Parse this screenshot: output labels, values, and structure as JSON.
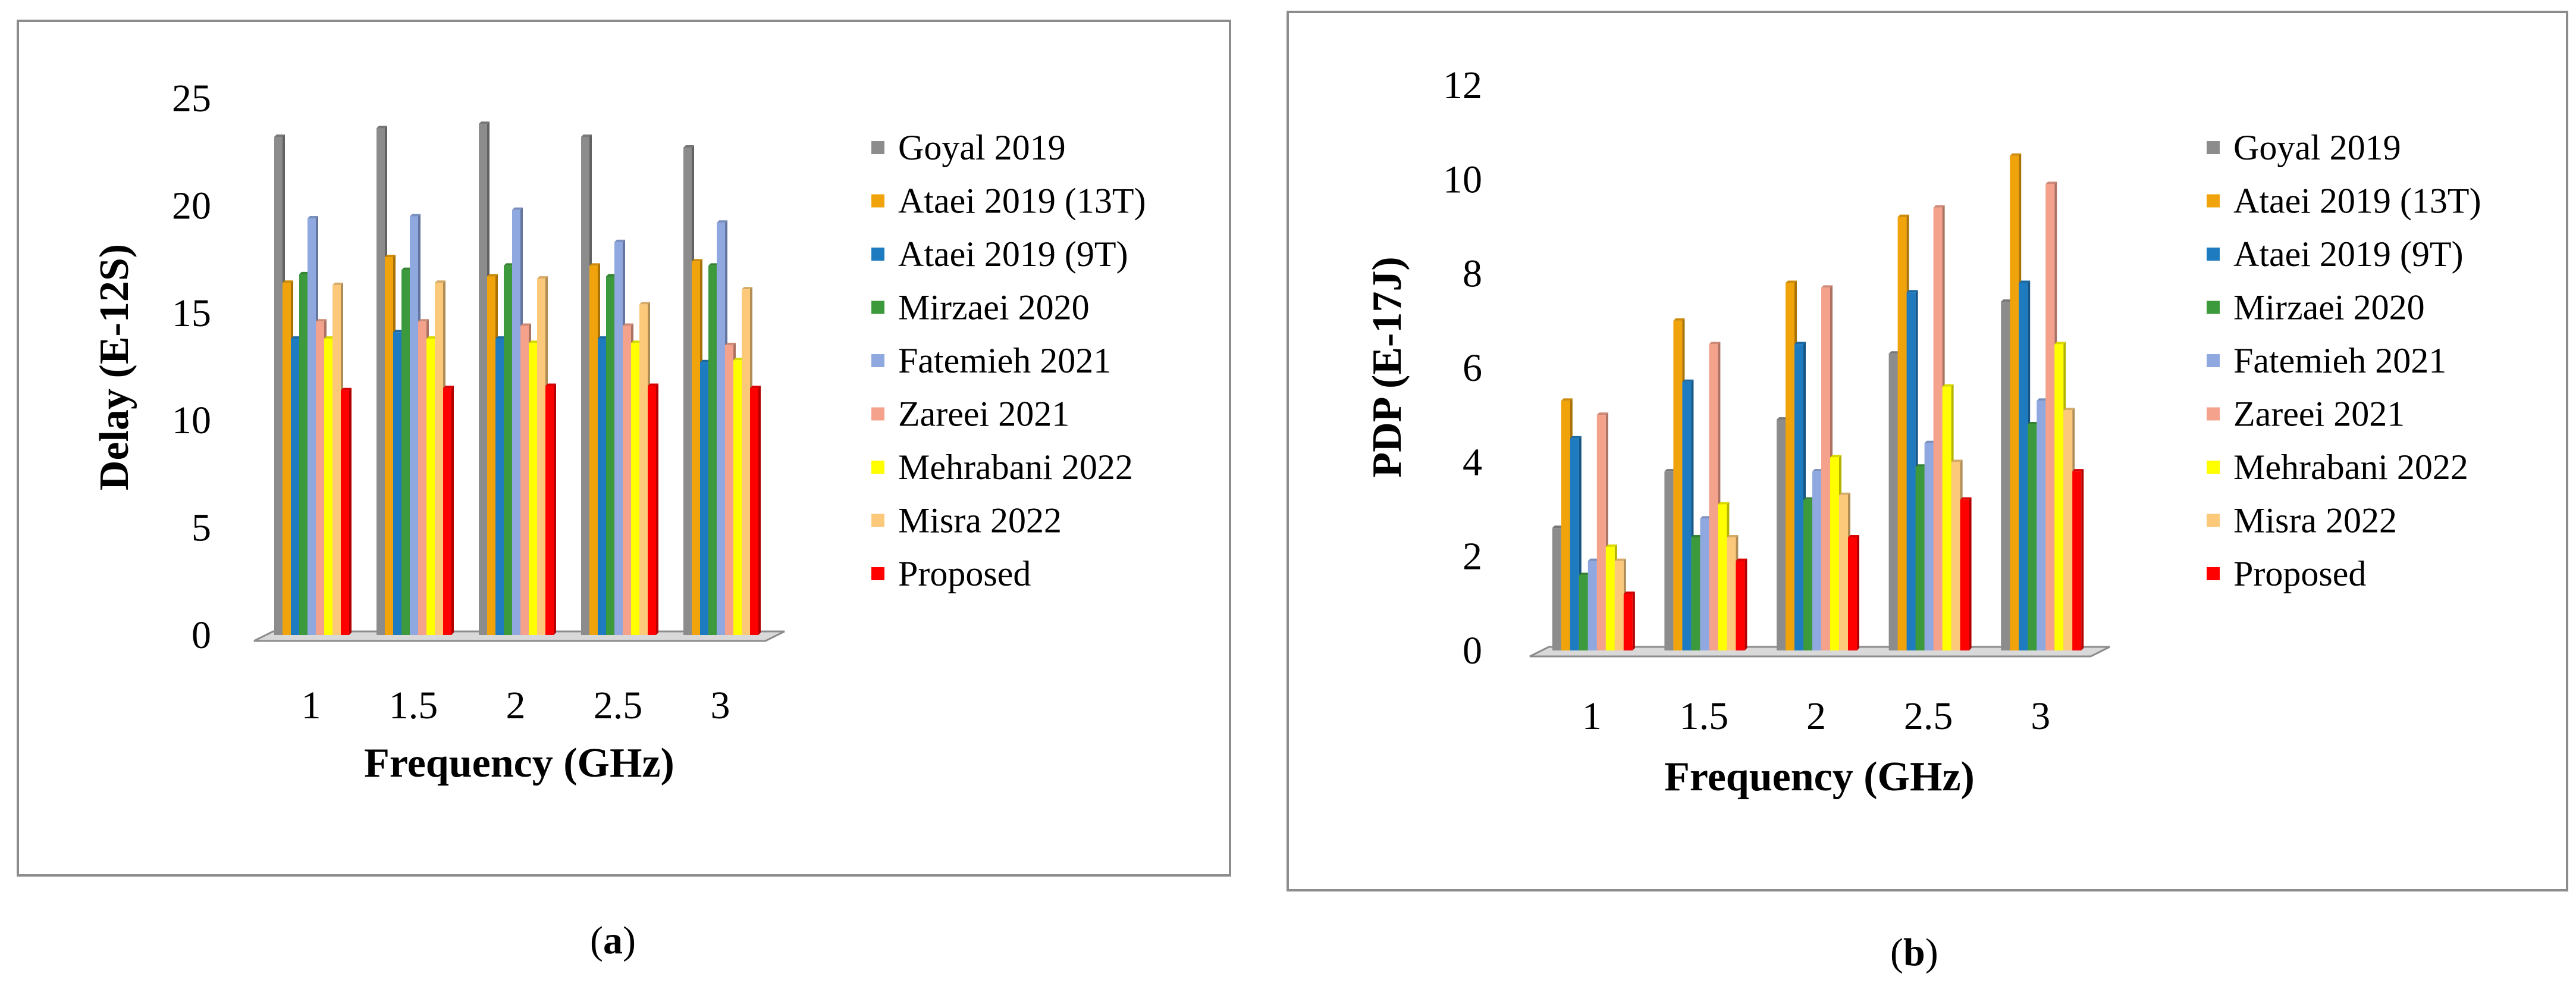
{
  "chart_data": [
    {
      "type": "bar",
      "panel_label": "a",
      "title": "",
      "xlabel": "Frequency (GHz)",
      "ylabel": "Delay (E-12S)",
      "ylim": [
        0,
        25
      ],
      "yticks": [
        "0",
        "5",
        "10",
        "15",
        "20",
        "25"
      ],
      "categories": [
        "1",
        "1.5",
        "2",
        "2.5",
        "3"
      ],
      "grid": false,
      "legend_position": "right",
      "series": [
        {
          "name": "Goyal 2019",
          "color": "#8c8c8c",
          "values": [
            23.2,
            23.6,
            23.8,
            23.2,
            22.7
          ]
        },
        {
          "name": "Ataei 2019 (13T)",
          "color": "#f0a30a",
          "values": [
            16.4,
            17.6,
            16.7,
            17.2,
            17.4
          ]
        },
        {
          "name": "Ataei 2019 (9T)",
          "color": "#1f7bbf",
          "values": [
            13.8,
            14.1,
            13.8,
            13.8,
            12.7
          ]
        },
        {
          "name": "Mirzaei 2020",
          "color": "#3c9a3c",
          "values": [
            16.8,
            17.0,
            17.2,
            16.7,
            17.2
          ]
        },
        {
          "name": "Fatemieh 2021",
          "color": "#8fa8e0",
          "values": [
            19.4,
            19.5,
            19.8,
            18.3,
            19.2
          ]
        },
        {
          "name": "Zareei 2021",
          "color": "#f4a28c",
          "values": [
            14.6,
            14.6,
            14.4,
            14.4,
            13.5
          ]
        },
        {
          "name": "Mehrabani 2022",
          "color": "#ffff00",
          "values": [
            13.8,
            13.8,
            13.6,
            13.6,
            12.8
          ]
        },
        {
          "name": "Misra 2022",
          "color": "#fcc97a",
          "values": [
            16.3,
            16.4,
            16.6,
            15.4,
            16.1
          ]
        },
        {
          "name": "Proposed",
          "color": "#ff0000",
          "values": [
            11.4,
            11.5,
            11.6,
            11.6,
            11.5
          ]
        }
      ]
    },
    {
      "type": "bar",
      "panel_label": "b",
      "title": "",
      "xlabel": "Frequency (GHz)",
      "ylabel": "PDP (E-17J)",
      "ylim": [
        0,
        12
      ],
      "yticks": [
        "0",
        "2",
        "4",
        "6",
        "8",
        "10",
        "12"
      ],
      "categories": [
        "1",
        "1.5",
        "2",
        "2.5",
        "3"
      ],
      "grid": false,
      "legend_position": "right",
      "series": [
        {
          "name": "Goyal 2019",
          "color": "#8c8c8c",
          "values": [
            2.6,
            3.8,
            4.9,
            6.3,
            7.4
          ]
        },
        {
          "name": "Ataei 2019 (13T)",
          "color": "#f0a30a",
          "values": [
            5.3,
            7.0,
            7.8,
            9.2,
            10.5
          ]
        },
        {
          "name": "Ataei 2019 (9T)",
          "color": "#1f7bbf",
          "values": [
            4.5,
            5.7,
            6.5,
            7.6,
            7.8
          ]
        },
        {
          "name": "Mirzaei 2020",
          "color": "#3c9a3c",
          "values": [
            1.6,
            2.4,
            3.2,
            3.9,
            4.8
          ]
        },
        {
          "name": "Fatemieh 2021",
          "color": "#8fa8e0",
          "values": [
            1.9,
            2.8,
            3.8,
            4.4,
            5.3
          ]
        },
        {
          "name": "Zareei 2021",
          "color": "#f4a28c",
          "values": [
            5.0,
            6.5,
            7.7,
            9.4,
            9.9
          ]
        },
        {
          "name": "Mehrabani 2022",
          "color": "#ffff00",
          "values": [
            2.2,
            3.1,
            4.1,
            5.6,
            6.5
          ]
        },
        {
          "name": "Misra 2022",
          "color": "#fcc97a",
          "values": [
            1.9,
            2.4,
            3.3,
            4.0,
            5.1
          ]
        },
        {
          "name": "Proposed",
          "color": "#ff0000",
          "values": [
            1.2,
            1.9,
            2.4,
            3.2,
            3.8
          ]
        }
      ]
    }
  ]
}
